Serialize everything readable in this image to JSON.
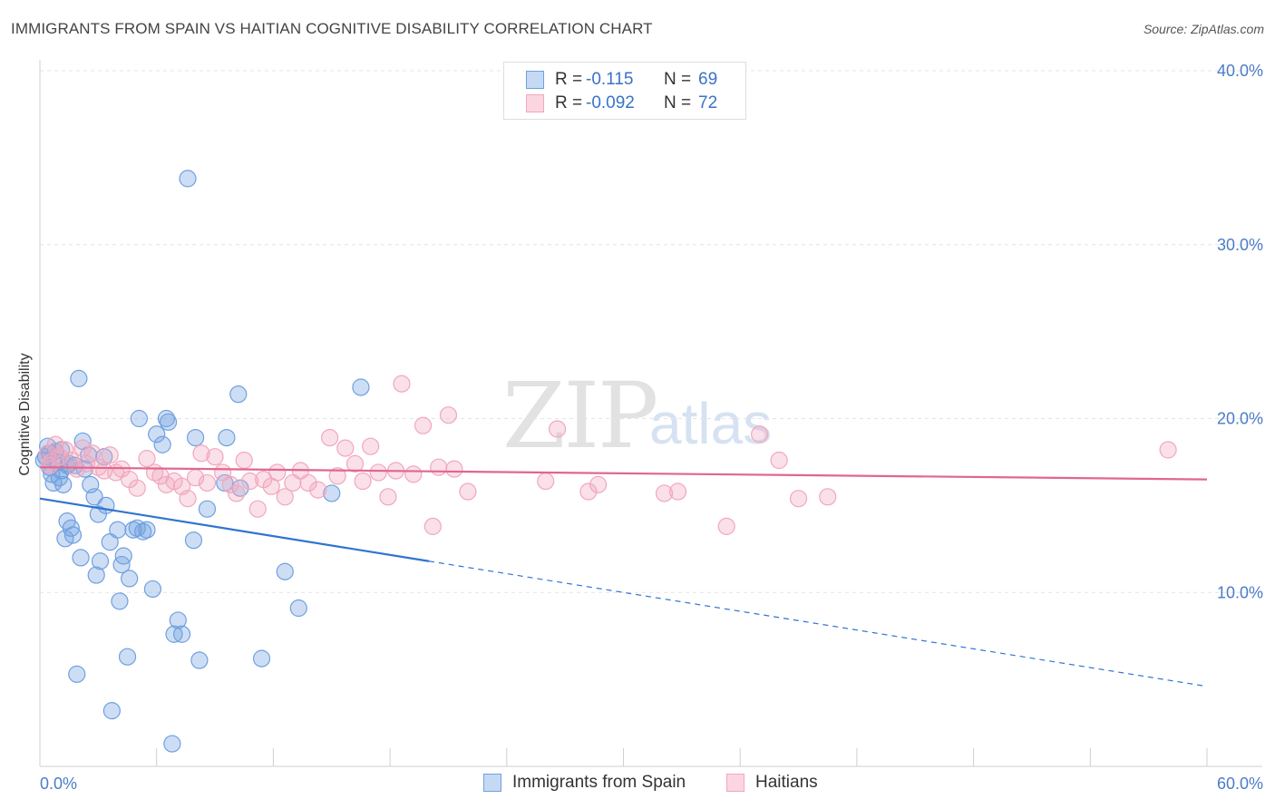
{
  "header": {
    "title": "IMMIGRANTS FROM SPAIN VS HAITIAN COGNITIVE DISABILITY CORRELATION CHART",
    "source": "Source: ZipAtlas.com"
  },
  "watermark": {
    "zip": "ZIP",
    "atlas": "atlas"
  },
  "legend": {
    "rows": [
      {
        "r_label": "R =",
        "r_value": "-0.115",
        "n_label": "N =",
        "n_value": "69",
        "color": "#6fa0e0"
      },
      {
        "r_label": "R =",
        "r_value": "-0.092",
        "n_label": "N =",
        "n_value": "72",
        "color": "#f2a7bd"
      }
    ]
  },
  "bottom_legend": [
    {
      "label": "Immigrants from Spain",
      "color": "#6fa0e0"
    },
    {
      "label": "Haitians",
      "color": "#f2a7bd"
    }
  ],
  "chart_data": {
    "type": "scatter",
    "title": "IMMIGRANTS FROM SPAIN VS HAITIAN COGNITIVE DISABILITY CORRELATION CHART",
    "xlabel": "",
    "ylabel": "Cognitive Disability",
    "xlim": [
      0,
      60
    ],
    "ylim": [
      0,
      40
    ],
    "x_tick_labels": [
      "0.0%",
      "60.0%"
    ],
    "y_ticks": [
      10,
      20,
      30,
      40
    ],
    "y_tick_labels": [
      "10.0%",
      "20.0%",
      "30.0%",
      "40.0%"
    ],
    "grid": true,
    "legend_position": "top-center",
    "series": [
      {
        "name": "Immigrants from Spain",
        "color": "#6fa0e0",
        "line_color": "#2f74d0",
        "trend": {
          "x0": 0,
          "y0": 15.4,
          "x1": 60,
          "y1": 4.6,
          "solid_until": 20
        },
        "points": [
          [
            0.3,
            17.8
          ],
          [
            0.4,
            18.4
          ],
          [
            0.5,
            17.2
          ],
          [
            0.6,
            16.8
          ],
          [
            0.7,
            16.3
          ],
          [
            0.8,
            18.1
          ],
          [
            0.9,
            17.5
          ],
          [
            1.0,
            16.6
          ],
          [
            1.1,
            17.0
          ],
          [
            1.2,
            16.2
          ],
          [
            1.3,
            13.1
          ],
          [
            1.4,
            14.1
          ],
          [
            1.5,
            17.4
          ],
          [
            1.6,
            13.7
          ],
          [
            1.7,
            13.3
          ],
          [
            1.8,
            17.3
          ],
          [
            1.9,
            5.3
          ],
          [
            2.0,
            22.3
          ],
          [
            2.1,
            12.0
          ],
          [
            2.2,
            18.7
          ],
          [
            2.3,
            17.1
          ],
          [
            2.5,
            17.9
          ],
          [
            2.6,
            16.2
          ],
          [
            2.8,
            15.5
          ],
          [
            2.9,
            11.0
          ],
          [
            3.0,
            14.5
          ],
          [
            3.1,
            11.8
          ],
          [
            3.3,
            17.8
          ],
          [
            3.4,
            15.0
          ],
          [
            3.6,
            12.9
          ],
          [
            3.7,
            3.2
          ],
          [
            4.0,
            13.6
          ],
          [
            4.1,
            9.5
          ],
          [
            4.2,
            11.6
          ],
          [
            4.3,
            12.1
          ],
          [
            4.5,
            6.3
          ],
          [
            4.6,
            10.8
          ],
          [
            4.8,
            13.6
          ],
          [
            5.0,
            13.7
          ],
          [
            5.1,
            20.0
          ],
          [
            5.3,
            13.5
          ],
          [
            5.5,
            13.6
          ],
          [
            5.8,
            10.2
          ],
          [
            6.0,
            19.1
          ],
          [
            6.3,
            18.5
          ],
          [
            6.5,
            20.0
          ],
          [
            6.6,
            19.8
          ],
          [
            6.9,
            7.6
          ],
          [
            7.1,
            8.4
          ],
          [
            7.3,
            7.6
          ],
          [
            6.8,
            1.3
          ],
          [
            7.6,
            33.8
          ],
          [
            7.9,
            13.0
          ],
          [
            8.0,
            18.9
          ],
          [
            8.2,
            6.1
          ],
          [
            8.6,
            14.8
          ],
          [
            9.5,
            16.3
          ],
          [
            9.6,
            18.9
          ],
          [
            10.2,
            21.4
          ],
          [
            10.3,
            16.0
          ],
          [
            11.4,
            6.2
          ],
          [
            12.6,
            11.2
          ],
          [
            13.3,
            9.1
          ],
          [
            15.0,
            15.7
          ],
          [
            16.5,
            21.8
          ],
          [
            0.5,
            18.0
          ],
          [
            1.1,
            18.2
          ],
          [
            0.2,
            17.6
          ],
          [
            1.4,
            17.3
          ]
        ]
      },
      {
        "name": "Haitians",
        "color": "#f2a7bd",
        "line_color": "#e06690",
        "trend": {
          "x0": 0,
          "y0": 17.2,
          "x1": 60,
          "y1": 16.5,
          "solid_until": 60
        },
        "points": [
          [
            0.4,
            18.0
          ],
          [
            0.6,
            17.5
          ],
          [
            0.8,
            18.5
          ],
          [
            1.0,
            17.8
          ],
          [
            1.3,
            18.2
          ],
          [
            1.6,
            17.6
          ],
          [
            1.9,
            17.1
          ],
          [
            2.2,
            18.3
          ],
          [
            2.4,
            17.4
          ],
          [
            2.7,
            18.0
          ],
          [
            3.0,
            17.2
          ],
          [
            3.3,
            17.0
          ],
          [
            3.6,
            17.9
          ],
          [
            3.9,
            16.9
          ],
          [
            4.2,
            17.1
          ],
          [
            4.6,
            16.5
          ],
          [
            5.0,
            16.0
          ],
          [
            5.5,
            17.7
          ],
          [
            5.9,
            16.9
          ],
          [
            6.2,
            16.7
          ],
          [
            6.5,
            16.2
          ],
          [
            6.9,
            16.4
          ],
          [
            7.3,
            16.1
          ],
          [
            7.6,
            15.4
          ],
          [
            8.0,
            16.6
          ],
          [
            8.3,
            18.0
          ],
          [
            8.6,
            16.3
          ],
          [
            9.0,
            17.8
          ],
          [
            9.4,
            16.9
          ],
          [
            9.8,
            16.2
          ],
          [
            10.1,
            15.7
          ],
          [
            10.5,
            17.6
          ],
          [
            10.8,
            16.4
          ],
          [
            11.2,
            14.8
          ],
          [
            11.5,
            16.5
          ],
          [
            11.9,
            16.1
          ],
          [
            12.2,
            16.9
          ],
          [
            12.6,
            15.5
          ],
          [
            13.0,
            16.3
          ],
          [
            13.4,
            17.0
          ],
          [
            13.8,
            16.3
          ],
          [
            14.3,
            15.9
          ],
          [
            14.9,
            18.9
          ],
          [
            15.3,
            16.7
          ],
          [
            15.7,
            18.3
          ],
          [
            16.2,
            17.4
          ],
          [
            16.6,
            16.4
          ],
          [
            17.0,
            18.4
          ],
          [
            17.4,
            16.9
          ],
          [
            17.9,
            15.5
          ],
          [
            18.3,
            17.0
          ],
          [
            18.6,
            22.0
          ],
          [
            19.2,
            16.8
          ],
          [
            19.7,
            19.6
          ],
          [
            20.2,
            13.8
          ],
          [
            20.5,
            17.2
          ],
          [
            21.0,
            20.2
          ],
          [
            21.3,
            17.1
          ],
          [
            22.0,
            15.8
          ],
          [
            26.0,
            16.4
          ],
          [
            26.6,
            19.4
          ],
          [
            28.2,
            15.8
          ],
          [
            28.7,
            16.2
          ],
          [
            32.1,
            15.7
          ],
          [
            32.8,
            15.8
          ],
          [
            35.3,
            13.8
          ],
          [
            37.0,
            19.1
          ],
          [
            38.0,
            17.6
          ],
          [
            39.0,
            15.4
          ],
          [
            40.5,
            15.5
          ],
          [
            58.0,
            18.2
          ],
          [
            0.5,
            17.3
          ]
        ]
      }
    ]
  }
}
